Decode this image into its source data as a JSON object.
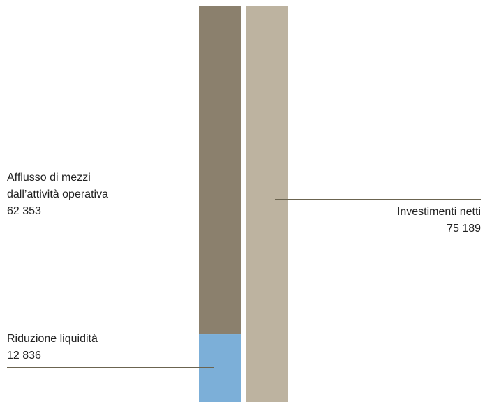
{
  "chart_data": {
    "type": "bar",
    "title": "",
    "xlabel": "",
    "ylabel": "",
    "bars": [
      {
        "name": "sources",
        "segments": [
          {
            "label": "Afflusso di mezzi dall’attività operativa",
            "value": 62353,
            "color": "#8b806d"
          },
          {
            "label": "Riduzione liquidità",
            "value": 12836,
            "color": "#7cafd8"
          }
        ]
      },
      {
        "name": "uses",
        "segments": [
          {
            "label": "Investimenti netti",
            "value": 75189,
            "color": "#bdb3a0"
          }
        ]
      }
    ],
    "total": 75189
  },
  "labels": {
    "operating_line1": "Afflusso di mezzi",
    "operating_line2": "dall’attività operativa",
    "operating_value": "62 353",
    "liquidity_line1": "Riduzione liquidità",
    "liquidity_value": "12 836",
    "investments_line1": "Investimenti netti",
    "investments_value": "75 189"
  },
  "colors": {
    "leader_line": "#6b6450"
  }
}
